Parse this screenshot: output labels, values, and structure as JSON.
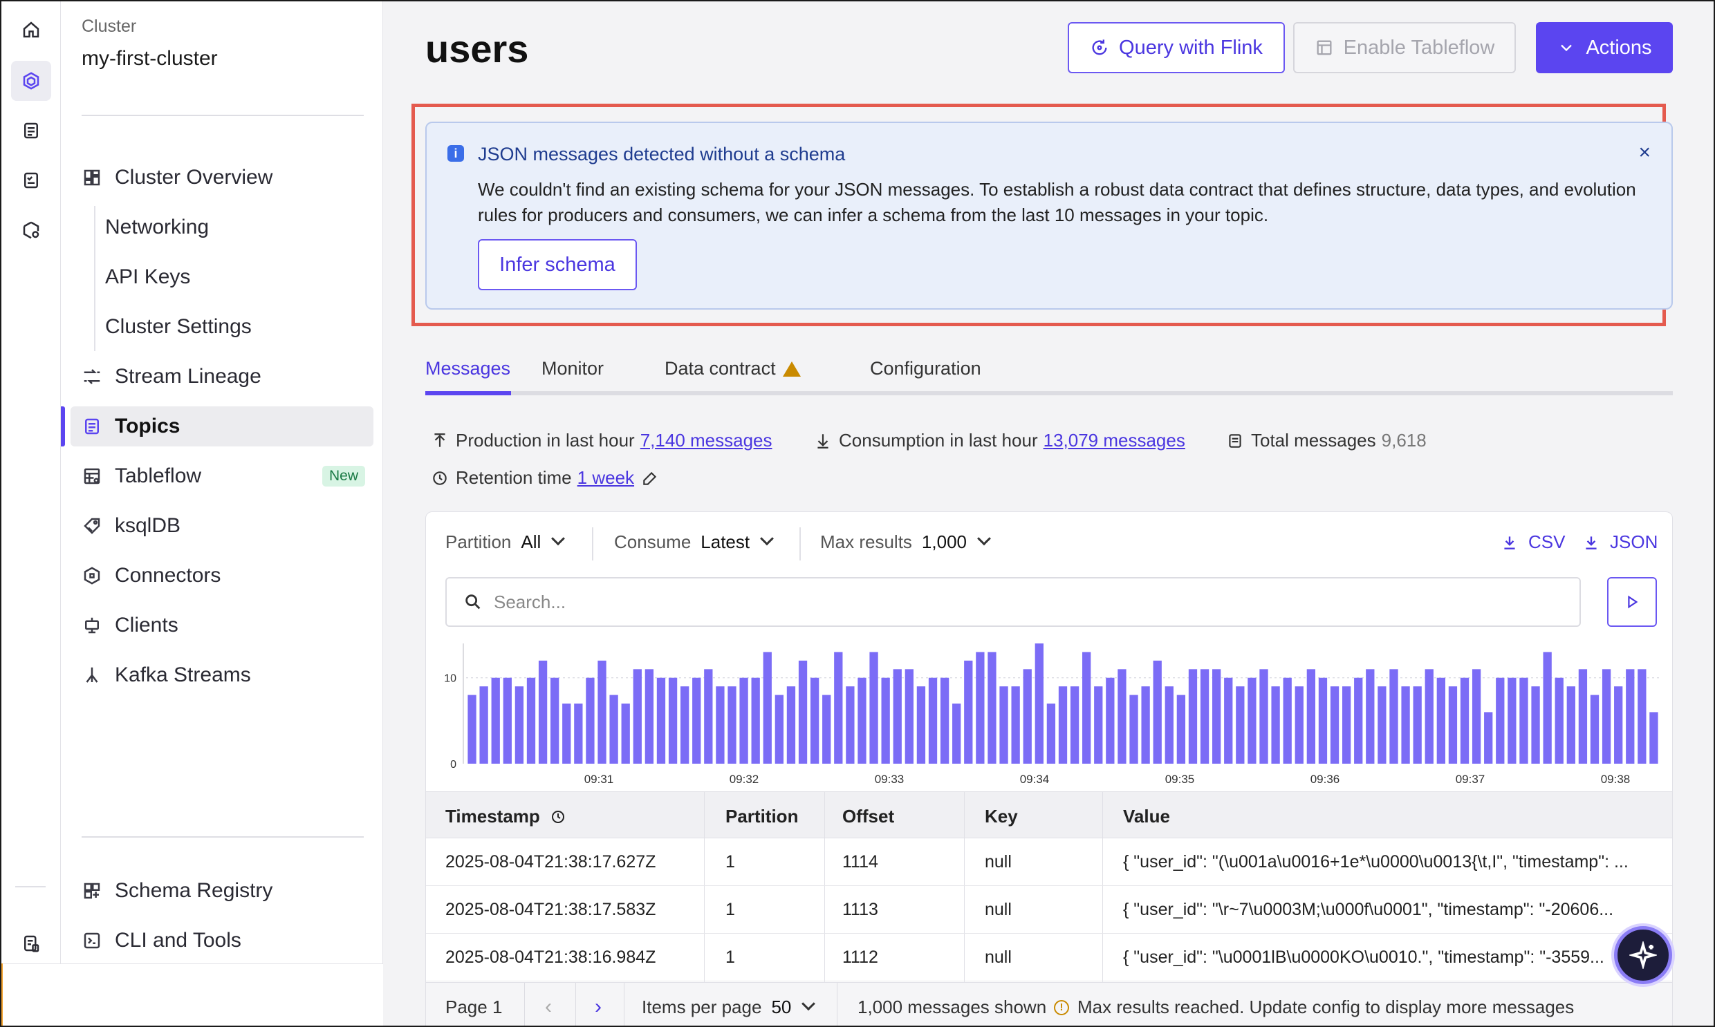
{
  "sidebar": {
    "cluster_label": "Cluster",
    "cluster_name": "my-first-cluster",
    "items": [
      {
        "label": "Cluster Overview",
        "icon": "dashboard-icon"
      },
      {
        "label": "Networking"
      },
      {
        "label": "API Keys"
      },
      {
        "label": "Cluster Settings"
      },
      {
        "label": "Stream Lineage",
        "icon": "lineage-icon"
      },
      {
        "label": "Topics",
        "icon": "topics-icon",
        "active": true
      },
      {
        "label": "Tableflow",
        "icon": "tableflow-icon",
        "badge": "New"
      },
      {
        "label": "ksqlDB",
        "icon": "ksqldb-icon"
      },
      {
        "label": "Connectors",
        "icon": "connectors-icon"
      },
      {
        "label": "Clients",
        "icon": "clients-icon"
      },
      {
        "label": "Kafka Streams",
        "icon": "kafka-streams-icon"
      }
    ],
    "bottom_items": [
      {
        "label": "Schema Registry",
        "icon": "schema-registry-icon"
      },
      {
        "label": "CLI and Tools",
        "icon": "terminal-icon"
      }
    ]
  },
  "header": {
    "title": "users",
    "flink_button": "Query with Flink",
    "tableflow_button": "Enable Tableflow",
    "actions_button": "Actions"
  },
  "banner": {
    "title": "JSON messages detected without a schema",
    "body": "We couldn't find an existing schema for your JSON messages. To establish a robust data contract that defines structure, data types, and evolution rules for producers and consumers, we can infer a schema from the last 10 messages in your topic.",
    "button": "Infer schema",
    "close": "×"
  },
  "tabs": [
    "Messages",
    "Monitor",
    "Data contract",
    "Configuration"
  ],
  "stats": {
    "production_label": "Production in last hour",
    "production_value": "7,140 messages",
    "consumption_label": "Consumption in last hour",
    "consumption_value": "13,079 messages",
    "total_label": "Total messages",
    "total_value": "9,618",
    "retention_label": "Retention time",
    "retention_value": "1 week"
  },
  "controls": {
    "partition_label": "Partition",
    "partition_value": "All",
    "consume_label": "Consume",
    "consume_value": "Latest",
    "max_label": "Max results",
    "max_value": "1,000",
    "csv": "CSV",
    "json": "JSON",
    "search_placeholder": "Search..."
  },
  "chart_data": {
    "type": "bar",
    "y_ticks": [
      "0",
      "10"
    ],
    "ylim": [
      0,
      14
    ],
    "x_ticks": [
      "09:31",
      "09:32",
      "09:33",
      "09:34",
      "09:35",
      "09:36",
      "09:37",
      "09:38"
    ],
    "values": [
      8,
      9,
      10,
      10,
      9,
      10,
      12,
      10,
      7,
      7,
      10,
      12,
      8,
      7,
      11,
      11,
      10,
      10,
      9,
      10,
      11,
      9,
      9,
      10,
      10,
      13,
      8,
      9,
      12,
      10,
      8,
      13,
      9,
      10,
      13,
      10,
      11,
      11,
      9,
      10,
      10,
      7,
      12,
      13,
      13,
      9,
      9,
      11,
      14,
      7,
      9,
      9,
      13,
      9,
      10,
      11,
      8,
      9,
      12,
      9,
      8,
      11,
      11,
      11,
      10,
      9,
      10,
      11,
      9,
      10,
      9,
      11,
      10,
      9,
      9,
      10,
      11,
      9,
      11,
      9,
      9,
      11,
      10,
      9,
      10,
      11,
      6,
      10,
      10,
      10,
      9,
      13,
      10,
      9,
      11,
      8,
      11,
      9,
      11,
      11,
      6
    ]
  },
  "table": {
    "headers": [
      "Timestamp",
      "Partition",
      "Offset",
      "Key",
      "Value"
    ],
    "rows": [
      [
        "2025-08-04T21:38:17.627Z",
        "1",
        "1114",
        "null",
        "{ \"user_id\": \"(\\u001a\\u0016+1e*\\u0000\\u0013{\\t,I\", \"timestamp\": ..."
      ],
      [
        "2025-08-04T21:38:17.583Z",
        "1",
        "1113",
        "null",
        "{ \"user_id\": \"\\r~7\\u0003M;\\u000f\\u0001\", \"timestamp\": \"-20606..."
      ],
      [
        "2025-08-04T21:38:16.984Z",
        "1",
        "1112",
        "null",
        "{ \"user_id\": \"\\u0001lB\\u0000KO\\u0010.\", \"timestamp\": \"-3559..."
      ]
    ]
  },
  "footer": {
    "page": "Page 1",
    "items_label": "Items per page",
    "items_value": "50",
    "shown": "1,000 messages shown",
    "warning": "Max results reached. Update config to display more messages"
  },
  "colors": {
    "accent": "#5b45f0",
    "banner_bg": "#e9effa",
    "highlight": "#e45a4e",
    "bar": "#7b6cf6"
  }
}
